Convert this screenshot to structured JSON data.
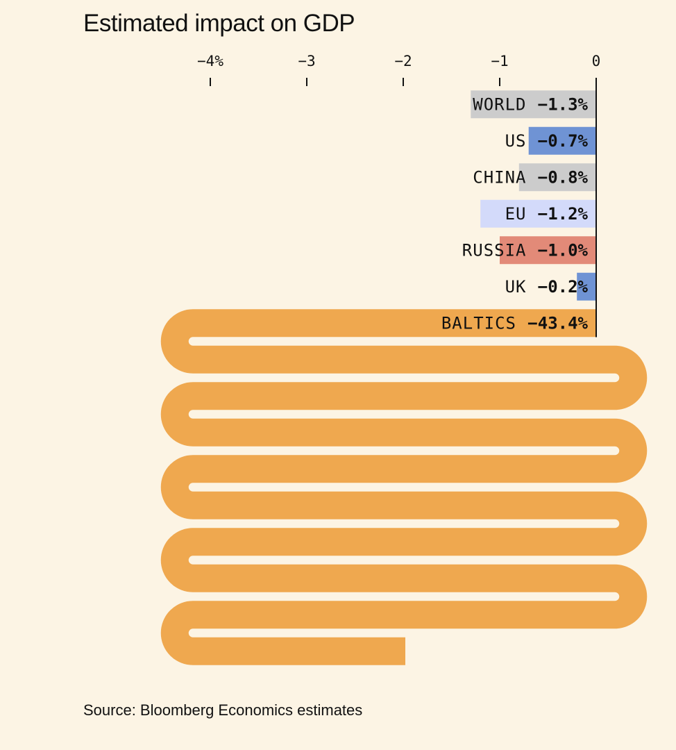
{
  "chart_data": {
    "type": "bar",
    "orientation": "horizontal",
    "title": "Estimated impact on GDP",
    "source": "Source: Bloomberg Economics estimates",
    "xlim": [
      -4.2,
      0
    ],
    "ticks": [
      {
        "value": -4,
        "label": "−4%"
      },
      {
        "value": -3,
        "label": "−3"
      },
      {
        "value": -2,
        "label": "−2"
      },
      {
        "value": -1,
        "label": "−1"
      },
      {
        "value": 0,
        "label": "0"
      }
    ],
    "categories": [
      "WORLD",
      "US",
      "CHINA",
      "EU",
      "RUSSIA",
      "UK",
      "BALTICS"
    ],
    "values": [
      -1.3,
      -0.7,
      -0.8,
      -1.2,
      -1.0,
      -0.2,
      -43.4
    ],
    "value_labels": [
      "−1.3%",
      "−0.7%",
      "−0.8%",
      "−1.2%",
      "−1.0%",
      "−0.2%",
      "−43.4%"
    ],
    "colors": [
      "#cccccc",
      "#6f93d4",
      "#cccccc",
      "#d3dafa",
      "#e28a78",
      "#6f93d4",
      "#efa84f"
    ],
    "overflow_note": "BALTICS bar exceeds axis and is drawn folding back and forth in a serpentine shape"
  }
}
